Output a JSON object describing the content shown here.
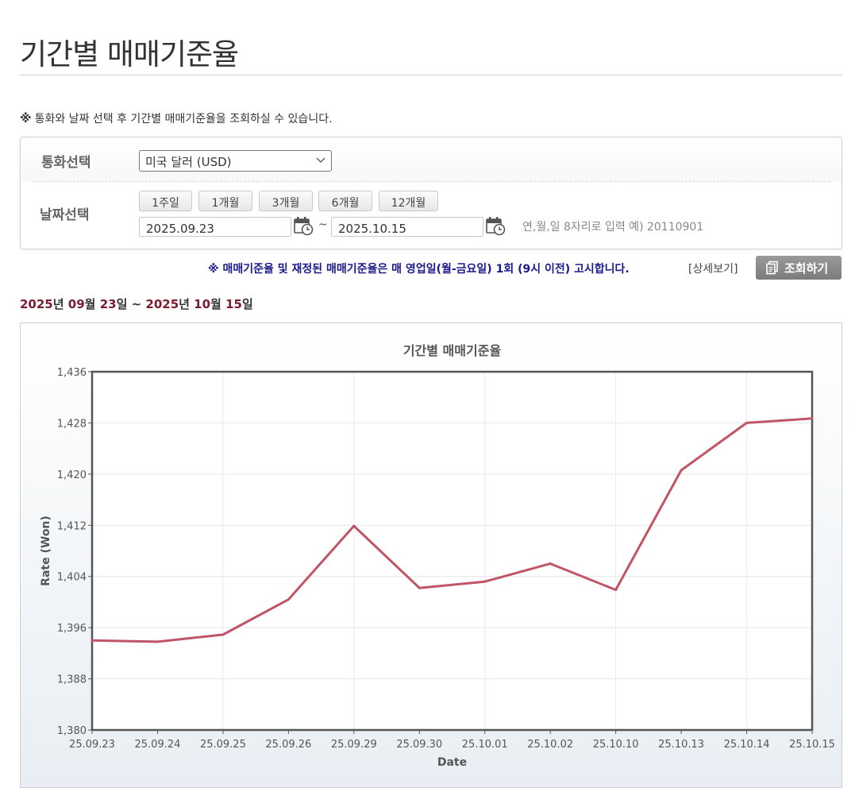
{
  "page": {
    "title": "기간별 매매기준율",
    "notice_mark": "※",
    "notice_text": "통화와 날짜 선택 후 기간별 매매기준율을 조회하실 수 있습니다."
  },
  "filter": {
    "currency_label": "통화선택",
    "currency_value": "미국 달러 (USD)",
    "date_label": "날짜선택",
    "period_buttons": [
      "1주일",
      "1개월",
      "3개월",
      "6개월",
      "12개월"
    ],
    "start_date": "2025.09.23",
    "tilde": "~",
    "end_date": "2025.10.15",
    "date_hint": "연,월,일 8자리로 입력 예) 20110901"
  },
  "announcement": "※ 매매기준율 및 재정된 매매기준율은 매 영업일(월-금요일) 1회 (9시 이전) 고시합니다.",
  "detail_link": "[상세보기]",
  "search_button": "조회하기",
  "range": {
    "start_year": "2025",
    "start_year_unit": "년 ",
    "start_month": "09",
    "start_month_unit": "월 ",
    "start_day": "23",
    "start_day_unit": "일 ~ ",
    "end_year": "2025",
    "end_year_unit": "년 ",
    "end_month": "10",
    "end_month_unit": "월 ",
    "end_day": "15",
    "end_day_unit": "일"
  },
  "colors": {
    "line": "#c05566",
    "range_number": "#7a1c2e",
    "announce": "#1a1a8c"
  },
  "chart_data": {
    "type": "line",
    "title": "기간별 매매기준율",
    "xlabel": "Date",
    "ylabel": "Rate (Won)",
    "ylim": [
      1380,
      1436
    ],
    "yticks": [
      1380,
      1388,
      1396,
      1404,
      1412,
      1420,
      1428,
      1436
    ],
    "ytick_labels": [
      "1,380",
      "1,388",
      "1,396",
      "1,404",
      "1,412",
      "1,420",
      "1,428",
      "1,436"
    ],
    "categories": [
      "25.09.23",
      "25.09.24",
      "25.09.25",
      "25.09.26",
      "25.09.29",
      "25.09.30",
      "25.10.01",
      "25.10.02",
      "25.10.10",
      "25.10.13",
      "25.10.14",
      "25.10.15"
    ],
    "series": [
      {
        "values": [
          1394.0,
          1393.8,
          1394.9,
          1400.4,
          1411.9,
          1402.2,
          1403.2,
          1406.0,
          1401.9,
          1420.6,
          1428.0,
          1428.7
        ]
      }
    ],
    "grid": true,
    "legend": "none"
  }
}
